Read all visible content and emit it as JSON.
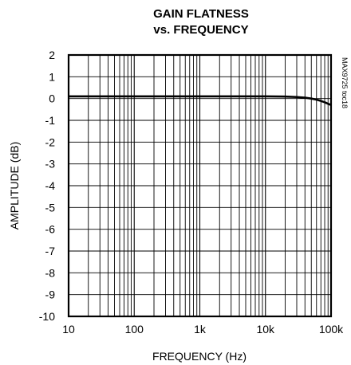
{
  "chart_data": {
    "type": "line",
    "title_line1": "GAIN FLATNESS",
    "title_line2": "vs. FREQUENCY",
    "xlabel": "FREQUENCY (Hz)",
    "ylabel": "AMPLITUDE (dB)",
    "side_note": "MAX9725 toc18",
    "x_scale": "log",
    "xlim": [
      10,
      100000
    ],
    "ylim": [
      -10,
      2
    ],
    "grid": true,
    "x_tick_values": [
      10,
      100,
      1000,
      10000,
      100000
    ],
    "x_tick_labels": [
      "10",
      "100",
      "1k",
      "10k",
      "100k"
    ],
    "y_tick_values": [
      2,
      1,
      0,
      -1,
      -2,
      -3,
      -4,
      -5,
      -6,
      -7,
      -8,
      -9,
      -10
    ],
    "y_tick_labels": [
      "2",
      "1",
      "0",
      "-1",
      "-2",
      "-3",
      "-4",
      "-5",
      "-6",
      "-7",
      "-8",
      "-9",
      "-10"
    ],
    "series": [
      {
        "color": "#000000",
        "x": [
          10,
          100,
          1000,
          10000,
          20000,
          30000,
          40000,
          50000,
          60000,
          70000,
          80000,
          90000,
          100000
        ],
        "y": [
          0.1,
          0.1,
          0.1,
          0.1,
          0.09,
          0.07,
          0.04,
          0.0,
          -0.05,
          -0.11,
          -0.17,
          -0.24,
          -0.3
        ]
      }
    ]
  }
}
